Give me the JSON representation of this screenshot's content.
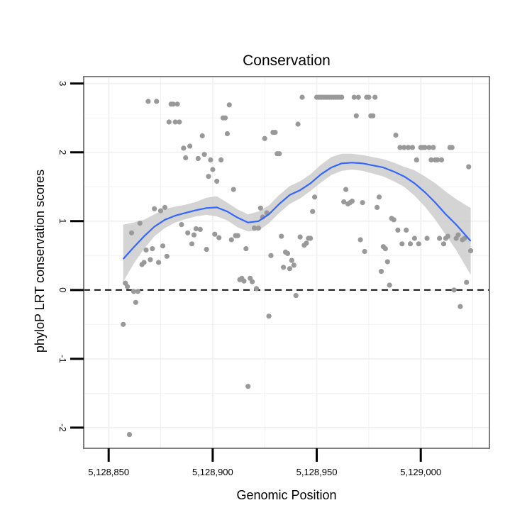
{
  "chart_data": {
    "type": "scatter",
    "title": "Conservation",
    "xlabel": "Genomic Position",
    "ylabel": "phyloP LRT conservation scores",
    "xlim": [
      5128838,
      5129033
    ],
    "ylim": [
      -2.3,
      3.1
    ],
    "x_ticks": [
      5128850,
      5128900,
      5128950,
      5129000
    ],
    "x_tick_labels": [
      "5,128,850",
      "5,128,900",
      "5,128,950",
      "5,129,000"
    ],
    "y_ticks": [
      -2,
      -1,
      0,
      1,
      2,
      3
    ],
    "y_tick_labels": [
      "-2",
      "-1",
      "0",
      "1",
      "2",
      "3"
    ],
    "reference_line": {
      "y": 0,
      "style": "dashed"
    },
    "grid": true,
    "colors": {
      "points": "#999999",
      "smooth_line": "#3366ff",
      "ribbon": "#cccccc",
      "reference": "#000000",
      "panel_border": "#7f7f7f",
      "grid": "#f2f2f2"
    },
    "series": [
      {
        "name": "phyloP scores",
        "kind": "points",
        "points": [
          [
            5128857,
            -0.5
          ],
          [
            5128858,
            0.1
          ],
          [
            5128859,
            0.05
          ],
          [
            5128860,
            -2.1
          ],
          [
            5128861,
            0.83
          ],
          [
            5128862,
            -0.02
          ],
          [
            5128863,
            -0.18
          ],
          [
            5128864,
            -0.02
          ],
          [
            5128865,
            0.97
          ],
          [
            5128866,
            0.37
          ],
          [
            5128867,
            0.4
          ],
          [
            5128868,
            0.58
          ],
          [
            5128869,
            2.74
          ],
          [
            5128870,
            0.44
          ],
          [
            5128871,
            0.6
          ],
          [
            5128872,
            1.18
          ],
          [
            5128873,
            2.74
          ],
          [
            5128874,
            0.4
          ],
          [
            5128875,
            1.15
          ],
          [
            5128876,
            0.64
          ],
          [
            5128877,
            1.2
          ],
          [
            5128878,
            0.49
          ],
          [
            5128879,
            2.44
          ],
          [
            5128880,
            2.7
          ],
          [
            5128881,
            2.7
          ],
          [
            5128882,
            2.44
          ],
          [
            5128883,
            2.7
          ],
          [
            5128884,
            2.44
          ],
          [
            5128885,
            0.95
          ],
          [
            5128886,
            2.06
          ],
          [
            5128887,
            1.92
          ],
          [
            5128888,
            0.83
          ],
          [
            5128889,
            2.09
          ],
          [
            5128890,
            0.67
          ],
          [
            5128891,
            0.8
          ],
          [
            5128892,
            0.89
          ],
          [
            5128893,
            1.91
          ],
          [
            5128894,
            0.88
          ],
          [
            5128895,
            2.24
          ],
          [
            5128896,
            1.97
          ],
          [
            5128897,
            0.59
          ],
          [
            5128898,
            1.65
          ],
          [
            5128899,
            1.89
          ],
          [
            5128900,
            1.75
          ],
          [
            5128901,
            0.81
          ],
          [
            5128902,
            1.58
          ],
          [
            5128903,
            0.76
          ],
          [
            5128904,
            1.89
          ],
          [
            5128905,
            2.5
          ],
          [
            5128906,
            2.5
          ],
          [
            5128907,
            2.27
          ],
          [
            5128908,
            2.69
          ],
          [
            5128909,
            0.73
          ],
          [
            5128910,
            1.46
          ],
          [
            5128911,
            0.79
          ],
          [
            5128912,
            0.79
          ],
          [
            5128913,
            0.15
          ],
          [
            5128914,
            0.17
          ],
          [
            5128915,
            0.13
          ],
          [
            5128916,
            0.6
          ],
          [
            5128917,
            -1.4
          ],
          [
            5128918,
            0.17
          ],
          [
            5128919,
            0.12
          ],
          [
            5128920,
            0.9
          ],
          [
            5128921,
            0.02
          ],
          [
            5128922,
            0.9
          ],
          [
            5128923,
            1.19
          ],
          [
            5128924,
            1.06
          ],
          [
            5128925,
            2.2
          ],
          [
            5128926,
            1.12
          ],
          [
            5128927,
            -0.38
          ],
          [
            5128928,
            0.5
          ],
          [
            5128929,
            2.29
          ],
          [
            5128930,
            2.29
          ],
          [
            5128931,
            1.98
          ],
          [
            5128932,
            1.98
          ],
          [
            5128933,
            0.78
          ],
          [
            5128934,
            0.33
          ],
          [
            5128935,
            0.55
          ],
          [
            5128936,
            0.53
          ],
          [
            5128937,
            0.31
          ],
          [
            5128938,
            0.43
          ],
          [
            5128939,
            0.36
          ],
          [
            5128940,
            -0.08
          ],
          [
            5128941,
            2.41
          ],
          [
            5128942,
            0.77
          ],
          [
            5128943,
            2.8
          ],
          [
            5128944,
            0.65
          ],
          [
            5128945,
            0.68
          ],
          [
            5128946,
            0.75
          ],
          [
            5128947,
            0.75
          ],
          [
            5128948,
            1.14
          ],
          [
            5128949,
            1.35
          ],
          [
            5128950,
            2.8
          ],
          [
            5128951,
            2.8
          ],
          [
            5128952,
            2.8
          ],
          [
            5128953,
            2.8
          ],
          [
            5128954,
            2.8
          ],
          [
            5128955,
            2.8
          ],
          [
            5128956,
            2.8
          ],
          [
            5128957,
            2.8
          ],
          [
            5128958,
            2.8
          ],
          [
            5128959,
            2.8
          ],
          [
            5128960,
            2.8
          ],
          [
            5128961,
            2.8
          ],
          [
            5128962,
            2.8
          ],
          [
            5128963,
            1.28
          ],
          [
            5128964,
            1.46
          ],
          [
            5128965,
            1.25
          ],
          [
            5128966,
            1.27
          ],
          [
            5128967,
            1.29
          ],
          [
            5128968,
            2.8
          ],
          [
            5128969,
            2.53
          ],
          [
            5128970,
            2.8
          ],
          [
            5128971,
            0.73
          ],
          [
            5128972,
            1.27
          ],
          [
            5128973,
            0.56
          ],
          [
            5128974,
            2.8
          ],
          [
            5128975,
            2.8
          ],
          [
            5128976,
            2.53
          ],
          [
            5128977,
            2.53
          ],
          [
            5128978,
            2.8
          ],
          [
            5128979,
            1.2
          ],
          [
            5128980,
            1.35
          ],
          [
            5128981,
            0.27
          ],
          [
            5128982,
            0.63
          ],
          [
            5128983,
            0.6
          ],
          [
            5128984,
            0.41
          ],
          [
            5128985,
            0.07
          ],
          [
            5128986,
            1.04
          ],
          [
            5128987,
            1.02
          ],
          [
            5128988,
            2.25
          ],
          [
            5128989,
            0.87
          ],
          [
            5128990,
            2.07
          ],
          [
            5128991,
            0.67
          ],
          [
            5128992,
            2.07
          ],
          [
            5128993,
            0.87
          ],
          [
            5128994,
            2.07
          ],
          [
            5128995,
            0.67
          ],
          [
            5128996,
            2.07
          ],
          [
            5128997,
            0.75
          ],
          [
            5128998,
            1.89
          ],
          [
            5128999,
            0.67
          ],
          [
            5129000,
            2.07
          ],
          [
            5129001,
            2.07
          ],
          [
            5129002,
            2.07
          ],
          [
            5129003,
            0.75
          ],
          [
            5129004,
            2.07
          ],
          [
            5129005,
            1.89
          ],
          [
            5129006,
            2.07
          ],
          [
            5129007,
            1.89
          ],
          [
            5129008,
            1.89
          ],
          [
            5129009,
            0.75
          ],
          [
            5129010,
            1.89
          ],
          [
            5129011,
            0.67
          ],
          [
            5129012,
            0.75
          ],
          [
            5129013,
            0.78
          ],
          [
            5129014,
            2.07
          ],
          [
            5129015,
            2.07
          ],
          [
            5129016,
            0.0
          ],
          [
            5129017,
            0.75
          ],
          [
            5129018,
            0.8
          ],
          [
            5129019,
            -0.24
          ],
          [
            5129020,
            0.73
          ],
          [
            5129021,
            0.75
          ],
          [
            5129022,
            0.11
          ],
          [
            5129023,
            1.79
          ],
          [
            5129024,
            0.57
          ]
        ]
      },
      {
        "name": "loess fit",
        "kind": "smooth",
        "x": [
          5128857,
          5128862,
          5128867,
          5128872,
          5128877,
          5128882,
          5128887,
          5128892,
          5128897,
          5128902,
          5128907,
          5128912,
          5128917,
          5128922,
          5128927,
          5128932,
          5128937,
          5128942,
          5128947,
          5128952,
          5128957,
          5128962,
          5128967,
          5128972,
          5128977,
          5128982,
          5128987,
          5128992,
          5128997,
          5129002,
          5129007,
          5129012,
          5129017,
          5129024
        ],
        "y": [
          0.45,
          0.62,
          0.78,
          0.92,
          1.02,
          1.08,
          1.12,
          1.16,
          1.19,
          1.2,
          1.14,
          1.05,
          0.98,
          1.0,
          1.1,
          1.25,
          1.38,
          1.45,
          1.55,
          1.68,
          1.78,
          1.84,
          1.85,
          1.84,
          1.81,
          1.78,
          1.72,
          1.65,
          1.55,
          1.42,
          1.27,
          1.1,
          0.95,
          0.71
        ],
        "lower": [
          0.12,
          0.38,
          0.6,
          0.78,
          0.9,
          0.98,
          1.03,
          1.07,
          1.09,
          1.07,
          1.01,
          0.91,
          0.85,
          0.86,
          0.97,
          1.12,
          1.25,
          1.33,
          1.44,
          1.56,
          1.67,
          1.73,
          1.75,
          1.73,
          1.69,
          1.65,
          1.58,
          1.5,
          1.37,
          1.21,
          1.02,
          0.8,
          0.58,
          0.22
        ],
        "upper": [
          0.95,
          0.98,
          1.02,
          1.1,
          1.18,
          1.21,
          1.24,
          1.28,
          1.34,
          1.36,
          1.27,
          1.17,
          1.1,
          1.14,
          1.23,
          1.38,
          1.51,
          1.58,
          1.68,
          1.82,
          1.93,
          1.98,
          1.98,
          1.96,
          1.93,
          1.9,
          1.85,
          1.79,
          1.74,
          1.65,
          1.55,
          1.43,
          1.32,
          1.19
        ]
      }
    ]
  }
}
